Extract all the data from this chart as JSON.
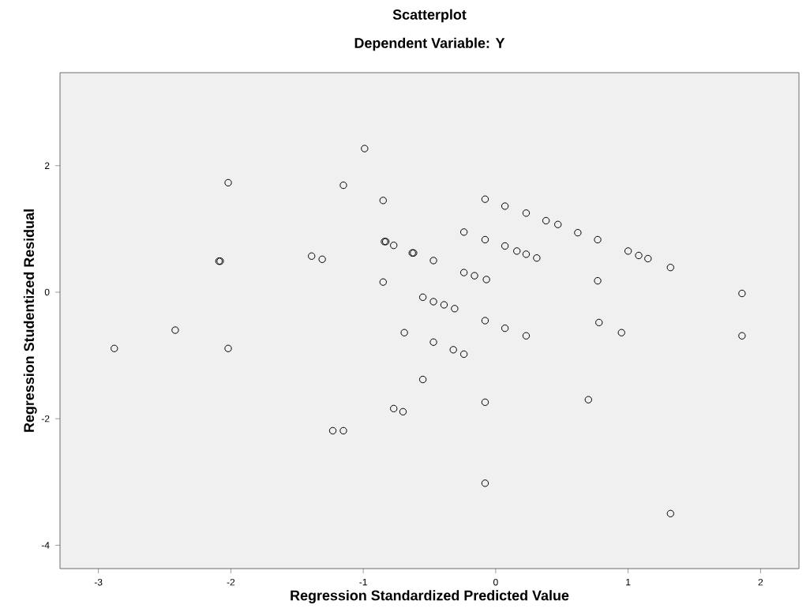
{
  "chart_data": {
    "type": "scatter",
    "title": "Scatterplot",
    "subtitle": "Dependent Variable: Y",
    "xlabel": "Regression Standardized Predicted Value",
    "ylabel": "Regression Studentized Residual",
    "xlim": [
      -3.29,
      2.29
    ],
    "ylim": [
      -4.37,
      3.47
    ],
    "xticks": [
      -3,
      -2,
      -1,
      0,
      1,
      2
    ],
    "yticks": [
      -4,
      -2,
      0,
      2
    ],
    "grid": false,
    "marker": "circle",
    "series": [
      {
        "color": "#000000",
        "x": [
          -2.88,
          -2.42,
          -2.02,
          -2.02,
          -2.09,
          -2.08,
          -1.39,
          -1.31,
          -1.15,
          -0.99,
          -0.85,
          -0.84,
          -0.83,
          -0.77,
          -0.85,
          -0.69,
          -0.77,
          -0.7,
          -1.23,
          -1.15,
          -0.63,
          -0.62,
          -0.47,
          -0.55,
          -0.47,
          -0.39,
          -0.31,
          -0.47,
          -0.32,
          -0.24,
          -0.55,
          -0.24,
          -0.08,
          -0.08,
          -0.24,
          -0.16,
          -0.07,
          -0.08,
          0.07,
          0.23,
          -0.08,
          0.07,
          0.23,
          0.38,
          0.47,
          0.62,
          0.77,
          0.07,
          0.16,
          0.23,
          0.31,
          0.77,
          0.78,
          0.95,
          0.7,
          1.0,
          1.08,
          1.15,
          1.32,
          1.86,
          1.86,
          -0.08,
          1.32
        ],
        "values": [
          -0.89,
          -0.6,
          -0.89,
          1.73,
          0.49,
          0.49,
          0.57,
          0.52,
          1.69,
          2.27,
          1.45,
          0.8,
          0.8,
          0.74,
          0.16,
          -0.64,
          -1.84,
          -1.89,
          -2.19,
          -2.19,
          0.62,
          0.62,
          0.5,
          -0.08,
          -0.15,
          -0.2,
          -0.26,
          -0.79,
          -0.91,
          -0.98,
          -1.38,
          0.95,
          1.47,
          0.83,
          0.31,
          0.26,
          0.2,
          -0.45,
          -0.57,
          -0.69,
          -1.74,
          1.36,
          1.25,
          1.13,
          1.07,
          0.94,
          0.83,
          0.73,
          0.65,
          0.6,
          0.54,
          0.18,
          -0.48,
          -0.64,
          -1.7,
          0.65,
          0.58,
          0.53,
          0.39,
          -0.02,
          -0.69,
          -3.02,
          -3.5
        ]
      }
    ]
  }
}
